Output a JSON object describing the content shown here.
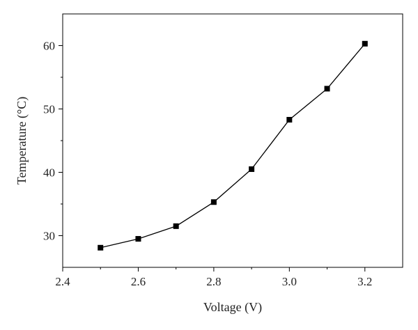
{
  "chart_data": {
    "type": "line",
    "xlabel": "Voltage (V)",
    "ylabel": "Temperature (°C)",
    "xlim": [
      2.4,
      3.3
    ],
    "ylim": [
      25,
      65
    ],
    "x_ticks": [
      2.4,
      2.6,
      2.8,
      3.0,
      3.2
    ],
    "x_tick_labels": [
      "2.4",
      "2.6",
      "2.8",
      "3.0",
      "3.2"
    ],
    "x_minor_step": 0.1,
    "y_ticks": [
      30,
      40,
      50,
      60
    ],
    "y_tick_labels": [
      "30",
      "40",
      "50",
      "60"
    ],
    "y_minor_step": 5,
    "grid": false,
    "legend": "none",
    "marker": "square",
    "line_color": "#000000",
    "series": [
      {
        "x": [
          2.5,
          2.6,
          2.7,
          2.8,
          2.9,
          3.0,
          3.1,
          3.2
        ],
        "values": [
          28.1,
          29.5,
          31.5,
          35.3,
          40.5,
          48.3,
          53.2,
          60.3
        ]
      }
    ]
  }
}
